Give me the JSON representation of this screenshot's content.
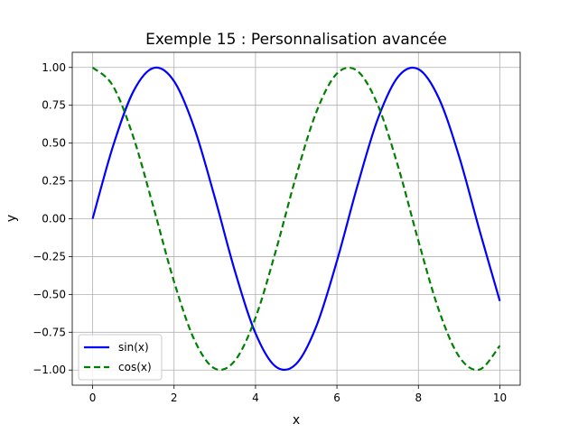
{
  "chart_data": {
    "type": "line",
    "title": "Exemple 15 : Personnalisation avancée",
    "xlabel": "x",
    "ylabel": "y",
    "xlim": [
      -0.5,
      10.5
    ],
    "ylim": [
      -1.1,
      1.1
    ],
    "xticks": [
      0,
      2,
      4,
      6,
      8,
      10
    ],
    "xtick_labels": [
      "0",
      "2",
      "4",
      "6",
      "8",
      "10"
    ],
    "yticks": [
      -1.0,
      -0.75,
      -0.5,
      -0.25,
      0.0,
      0.25,
      0.5,
      0.75,
      1.0
    ],
    "ytick_labels": [
      "−1.00",
      "−0.75",
      "−0.50",
      "−0.25",
      "0.00",
      "0.25",
      "0.50",
      "0.75",
      "1.00"
    ],
    "grid": true,
    "legend_position": "lower-left",
    "x": [
      0,
      0.5,
      1,
      1.5,
      2,
      2.5,
      3,
      3.5,
      4,
      4.5,
      5,
      5.5,
      6,
      6.5,
      7,
      7.5,
      8,
      8.5,
      9,
      9.5,
      10
    ],
    "series": [
      {
        "name": "sin(x)",
        "color": "#0000ff",
        "style": "solid",
        "values": [
          0.0,
          0.479,
          0.841,
          0.997,
          0.909,
          0.598,
          0.141,
          -0.351,
          -0.757,
          -0.978,
          -0.959,
          -0.706,
          -0.279,
          0.215,
          0.657,
          0.938,
          0.989,
          0.798,
          0.412,
          -0.075,
          -0.544
        ]
      },
      {
        "name": "cos(x)",
        "color": "#008000",
        "style": "dashed",
        "values": [
          1.0,
          0.878,
          0.54,
          0.071,
          -0.416,
          -0.801,
          -0.99,
          -0.936,
          -0.654,
          -0.211,
          0.284,
          0.709,
          0.96,
          0.977,
          0.754,
          0.347,
          -0.146,
          -0.602,
          -0.911,
          -0.997,
          -0.839
        ]
      }
    ]
  }
}
